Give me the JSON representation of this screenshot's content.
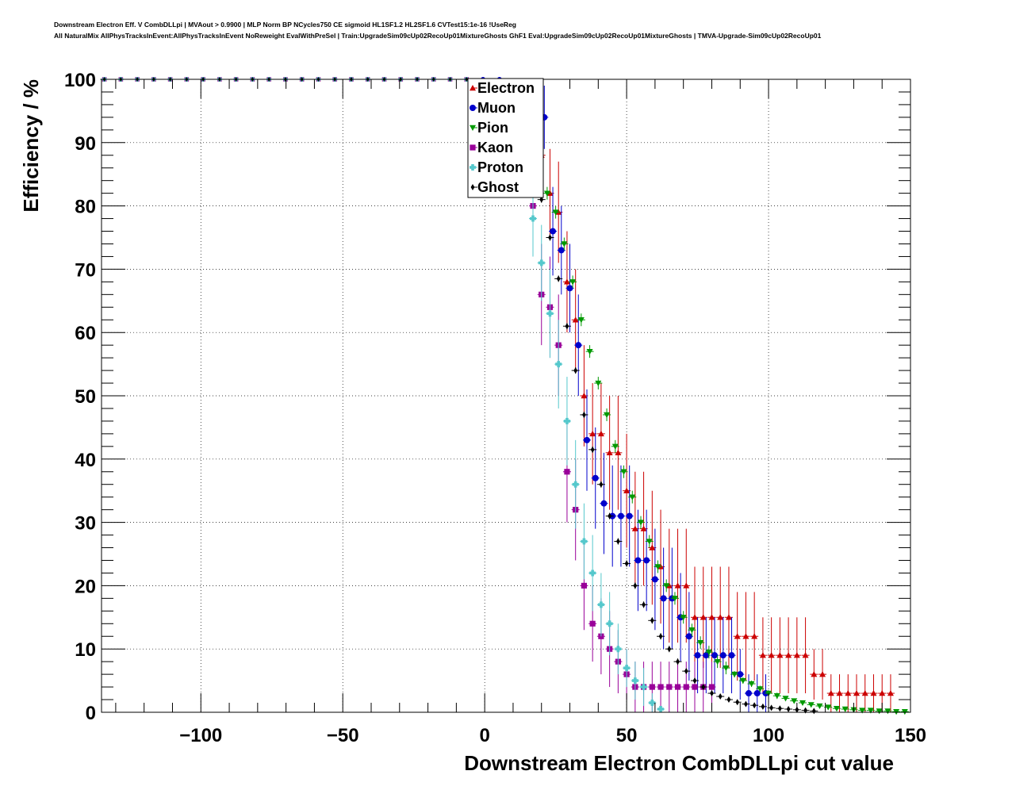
{
  "header": {
    "line1": "Downstream Electron Eff. V CombDLLpi | MVAout > 0.9900 | MLP Norm BP NCycles750 CE sigmoid HL1SF1.2 HL2SF1.6 CVTest15:1e-16 !UseReg",
    "line2": "All NaturalMix AllPhysTracksInEvent:AllPhysTracksInEvent NoReweight EvalWithPreSel | Train:UpgradeSim09cUp02RecoUp01MixtureGhosts GhF1 Eval:UpgradeSim09cUp02RecoUp01MixtureGhosts | TMVA-Upgrade-Sim09cUp02RecoUp01"
  },
  "chart_data": {
    "type": "scatter",
    "title": "",
    "xlabel": "Downstream Electron CombDLLpi cut value",
    "ylabel": "Efficiency / %",
    "xlim": [
      -135,
      150
    ],
    "ylim": [
      0,
      100
    ],
    "xticks": [
      -100,
      -50,
      0,
      50,
      100,
      150
    ],
    "xtick_labels": [
      "−100",
      "−50",
      "0",
      "50",
      "100",
      "150"
    ],
    "yticks": [
      0,
      10,
      20,
      30,
      40,
      50,
      60,
      70,
      80,
      90,
      100
    ],
    "ytick_labels": [
      "0",
      "10",
      "20",
      "30",
      "40",
      "50",
      "60",
      "70",
      "80",
      "90",
      "100"
    ],
    "grid": true,
    "legend_position": "top-center",
    "series": [
      {
        "name": "Electron",
        "color": "#cc0000",
        "marker": "triangle-up",
        "points": [
          [
            -134,
            100,
            0
          ],
          [
            -120,
            100,
            0
          ],
          [
            -100,
            100,
            0
          ],
          [
            -80,
            100,
            0
          ],
          [
            -60,
            100,
            0
          ],
          [
            -40,
            100,
            0
          ],
          [
            -20,
            100,
            0
          ],
          [
            -5,
            100,
            0
          ],
          [
            20,
            88,
            6
          ],
          [
            23,
            82,
            7
          ],
          [
            26,
            79,
            8
          ],
          [
            29,
            68,
            8
          ],
          [
            32,
            62,
            8
          ],
          [
            35,
            50,
            8
          ],
          [
            38,
            44,
            8
          ],
          [
            41,
            44,
            8
          ],
          [
            44,
            41,
            9
          ],
          [
            47,
            41,
            9
          ],
          [
            50,
            35,
            9
          ],
          [
            53,
            29,
            9
          ],
          [
            56,
            29,
            9
          ],
          [
            59,
            26,
            9
          ],
          [
            62,
            23,
            9
          ],
          [
            65,
            20,
            9
          ],
          [
            68,
            20,
            9
          ],
          [
            71,
            20,
            9
          ],
          [
            74,
            15,
            8
          ],
          [
            77,
            15,
            8
          ],
          [
            80,
            15,
            8
          ],
          [
            83,
            15,
            8
          ],
          [
            86,
            15,
            8
          ],
          [
            89,
            12,
            7
          ],
          [
            92,
            12,
            7
          ],
          [
            95,
            12,
            7
          ],
          [
            98,
            9,
            6
          ],
          [
            101,
            9,
            6
          ],
          [
            104,
            9,
            6
          ],
          [
            107,
            9,
            6
          ],
          [
            110,
            9,
            6
          ],
          [
            113,
            9,
            6
          ],
          [
            116,
            6,
            4
          ],
          [
            119,
            6,
            4
          ],
          [
            122,
            3,
            3
          ],
          [
            125,
            3,
            3
          ],
          [
            128,
            3,
            3
          ],
          [
            131,
            3,
            3
          ],
          [
            134,
            3,
            3
          ],
          [
            137,
            3,
            3
          ],
          [
            140,
            3,
            3
          ],
          [
            143,
            3,
            3
          ]
        ]
      },
      {
        "name": "Muon",
        "color": "#0000cc",
        "marker": "circle",
        "points": [
          [
            -134,
            100,
            0
          ],
          [
            -120,
            100,
            0
          ],
          [
            -100,
            100,
            0
          ],
          [
            -80,
            100,
            0
          ],
          [
            -60,
            100,
            0
          ],
          [
            -40,
            100,
            0
          ],
          [
            -20,
            100,
            0
          ],
          [
            -5,
            100,
            0
          ],
          [
            0,
            100,
            0
          ],
          [
            3,
            100,
            0
          ],
          [
            6,
            100,
            0
          ],
          [
            9,
            100,
            0
          ],
          [
            21,
            94,
            5
          ],
          [
            24,
            76,
            7
          ],
          [
            27,
            73,
            7
          ],
          [
            30,
            67,
            7
          ],
          [
            33,
            58,
            8
          ],
          [
            36,
            43,
            8
          ],
          [
            39,
            37,
            8
          ],
          [
            42,
            33,
            8
          ],
          [
            45,
            31,
            8
          ],
          [
            48,
            31,
            8
          ],
          [
            51,
            31,
            8
          ],
          [
            54,
            24,
            8
          ],
          [
            57,
            24,
            8
          ],
          [
            60,
            21,
            8
          ],
          [
            63,
            18,
            8
          ],
          [
            66,
            18,
            8
          ],
          [
            69,
            15,
            7
          ],
          [
            72,
            12,
            7
          ],
          [
            75,
            9,
            6
          ],
          [
            78,
            9,
            6
          ],
          [
            81,
            9,
            6
          ],
          [
            84,
            9,
            6
          ],
          [
            87,
            9,
            6
          ],
          [
            90,
            6,
            4
          ],
          [
            93,
            3,
            3
          ],
          [
            96,
            3,
            3
          ],
          [
            99,
            3,
            3
          ]
        ]
      },
      {
        "name": "Pion",
        "color": "#009900",
        "marker": "triangle-down",
        "points": [
          [
            -134,
            100,
            0
          ],
          [
            -120,
            100,
            0
          ],
          [
            -100,
            100,
            0
          ],
          [
            -80,
            100,
            0
          ],
          [
            -60,
            100,
            0
          ],
          [
            -40,
            100,
            0
          ],
          [
            -20,
            100,
            0
          ],
          [
            -5,
            100,
            0
          ],
          [
            22,
            82,
            1
          ],
          [
            25,
            79,
            1
          ],
          [
            28,
            74,
            1
          ],
          [
            31,
            68,
            1
          ],
          [
            34,
            62,
            1
          ],
          [
            37,
            57,
            1
          ],
          [
            40,
            52,
            1
          ],
          [
            43,
            47,
            1
          ],
          [
            46,
            42,
            1
          ],
          [
            49,
            38,
            1
          ],
          [
            52,
            34,
            1
          ],
          [
            55,
            30,
            1
          ],
          [
            58,
            27,
            1
          ],
          [
            61,
            23,
            1
          ],
          [
            64,
            20,
            1
          ],
          [
            67,
            18,
            1
          ],
          [
            70,
            15,
            1
          ],
          [
            73,
            13,
            1
          ],
          [
            76,
            11,
            1
          ],
          [
            79,
            9.5,
            1
          ],
          [
            82,
            8,
            1
          ],
          [
            85,
            7,
            1
          ],
          [
            88,
            6,
            0.5
          ],
          [
            91,
            5,
            0.5
          ],
          [
            94,
            4.5,
            0.5
          ],
          [
            97,
            3.7,
            0.5
          ],
          [
            100,
            3,
            0.5
          ],
          [
            103,
            2.6,
            0.5
          ],
          [
            106,
            2.2,
            0.3
          ],
          [
            109,
            1.8,
            0.3
          ],
          [
            112,
            1.5,
            0.3
          ],
          [
            115,
            1.2,
            0.3
          ],
          [
            118,
            1,
            0.3
          ],
          [
            121,
            0.8,
            0.2
          ],
          [
            124,
            0.6,
            0.2
          ],
          [
            127,
            0.5,
            0.2
          ],
          [
            130,
            0.4,
            0.2
          ],
          [
            133,
            0.3,
            0.1
          ],
          [
            136,
            0.3,
            0.1
          ],
          [
            139,
            0.2,
            0.1
          ],
          [
            142,
            0.2,
            0.1
          ],
          [
            145,
            0.1,
            0.1
          ],
          [
            148,
            0.1,
            0.1
          ]
        ]
      },
      {
        "name": "Kaon",
        "color": "#990099",
        "marker": "square",
        "points": [
          [
            -134,
            100,
            0
          ],
          [
            -120,
            100,
            0
          ],
          [
            -100,
            100,
            0
          ],
          [
            -80,
            100,
            0
          ],
          [
            -60,
            100,
            0
          ],
          [
            -40,
            100,
            0
          ],
          [
            -20,
            100,
            0
          ],
          [
            -3,
            100,
            0
          ],
          [
            17,
            80,
            7
          ],
          [
            20,
            66,
            8
          ],
          [
            23,
            64,
            8
          ],
          [
            26,
            58,
            8
          ],
          [
            29,
            38,
            8
          ],
          [
            32,
            32,
            8
          ],
          [
            35,
            20,
            7
          ],
          [
            38,
            14,
            6
          ],
          [
            41,
            12,
            6
          ],
          [
            44,
            10,
            6
          ],
          [
            47,
            8,
            5
          ],
          [
            50,
            6,
            4
          ],
          [
            53,
            4,
            4
          ],
          [
            56,
            4,
            4
          ],
          [
            59,
            4,
            4
          ],
          [
            62,
            4,
            4
          ],
          [
            65,
            4,
            4
          ],
          [
            68,
            4,
            4
          ],
          [
            71,
            4,
            4
          ],
          [
            74,
            4,
            4
          ],
          [
            77,
            4,
            4
          ],
          [
            80,
            4,
            4
          ]
        ]
      },
      {
        "name": "Proton",
        "color": "#55c8cc",
        "marker": "cross",
        "points": [
          [
            -134,
            100,
            0
          ],
          [
            -120,
            100,
            0
          ],
          [
            -100,
            100,
            0
          ],
          [
            -80,
            100,
            0
          ],
          [
            -60,
            100,
            0
          ],
          [
            -40,
            100,
            0
          ],
          [
            -20,
            100,
            0
          ],
          [
            -5,
            100,
            0
          ],
          [
            17,
            78,
            6
          ],
          [
            20,
            71,
            6
          ],
          [
            23,
            63,
            7
          ],
          [
            26,
            55,
            7
          ],
          [
            29,
            46,
            7
          ],
          [
            32,
            36,
            7
          ],
          [
            35,
            27,
            6
          ],
          [
            38,
            22,
            6
          ],
          [
            41,
            17,
            5
          ],
          [
            44,
            14,
            5
          ],
          [
            47,
            10,
            4
          ],
          [
            50,
            7,
            3
          ],
          [
            53,
            5,
            3
          ],
          [
            56,
            4,
            3
          ],
          [
            59,
            1.5,
            1.5
          ],
          [
            62,
            0.5,
            0.5
          ]
        ]
      },
      {
        "name": "Ghost",
        "color": "#000000",
        "marker": "diamond",
        "points": [
          [
            -134,
            100,
            0
          ],
          [
            -120,
            100,
            0
          ],
          [
            -100,
            100,
            0
          ],
          [
            -80,
            100,
            0
          ],
          [
            -60,
            100,
            0
          ],
          [
            -40,
            100,
            0
          ],
          [
            -20,
            100,
            0
          ],
          [
            -5,
            100,
            0
          ],
          [
            20,
            81,
            0.5
          ],
          [
            23,
            75,
            0.5
          ],
          [
            26,
            68.5,
            0.5
          ],
          [
            29,
            61,
            0.5
          ],
          [
            32,
            54,
            0.5
          ],
          [
            35,
            47,
            0.5
          ],
          [
            38,
            41.5,
            0.5
          ],
          [
            41,
            36,
            0.5
          ],
          [
            44,
            31,
            0.5
          ],
          [
            47,
            27,
            0.5
          ],
          [
            50,
            23.5,
            0.5
          ],
          [
            53,
            20,
            0.5
          ],
          [
            56,
            17,
            0.5
          ],
          [
            59,
            14.5,
            0.5
          ],
          [
            62,
            12,
            0.5
          ],
          [
            65,
            10,
            0.5
          ],
          [
            68,
            8,
            0.5
          ],
          [
            71,
            6.5,
            0.4
          ],
          [
            74,
            5,
            0.4
          ],
          [
            77,
            4,
            0.4
          ],
          [
            80,
            3,
            0.3
          ],
          [
            83,
            2.5,
            0.3
          ],
          [
            86,
            2,
            0.3
          ],
          [
            89,
            1.6,
            0.2
          ],
          [
            92,
            1.3,
            0.2
          ],
          [
            95,
            1.1,
            0.2
          ],
          [
            98,
            0.9,
            0.2
          ],
          [
            101,
            0.7,
            0.1
          ],
          [
            104,
            0.6,
            0.1
          ],
          [
            107,
            0.5,
            0.1
          ],
          [
            110,
            0.4,
            0.1
          ],
          [
            113,
            0.3,
            0.1
          ],
          [
            116,
            0.2,
            0.1
          ]
        ]
      }
    ]
  }
}
